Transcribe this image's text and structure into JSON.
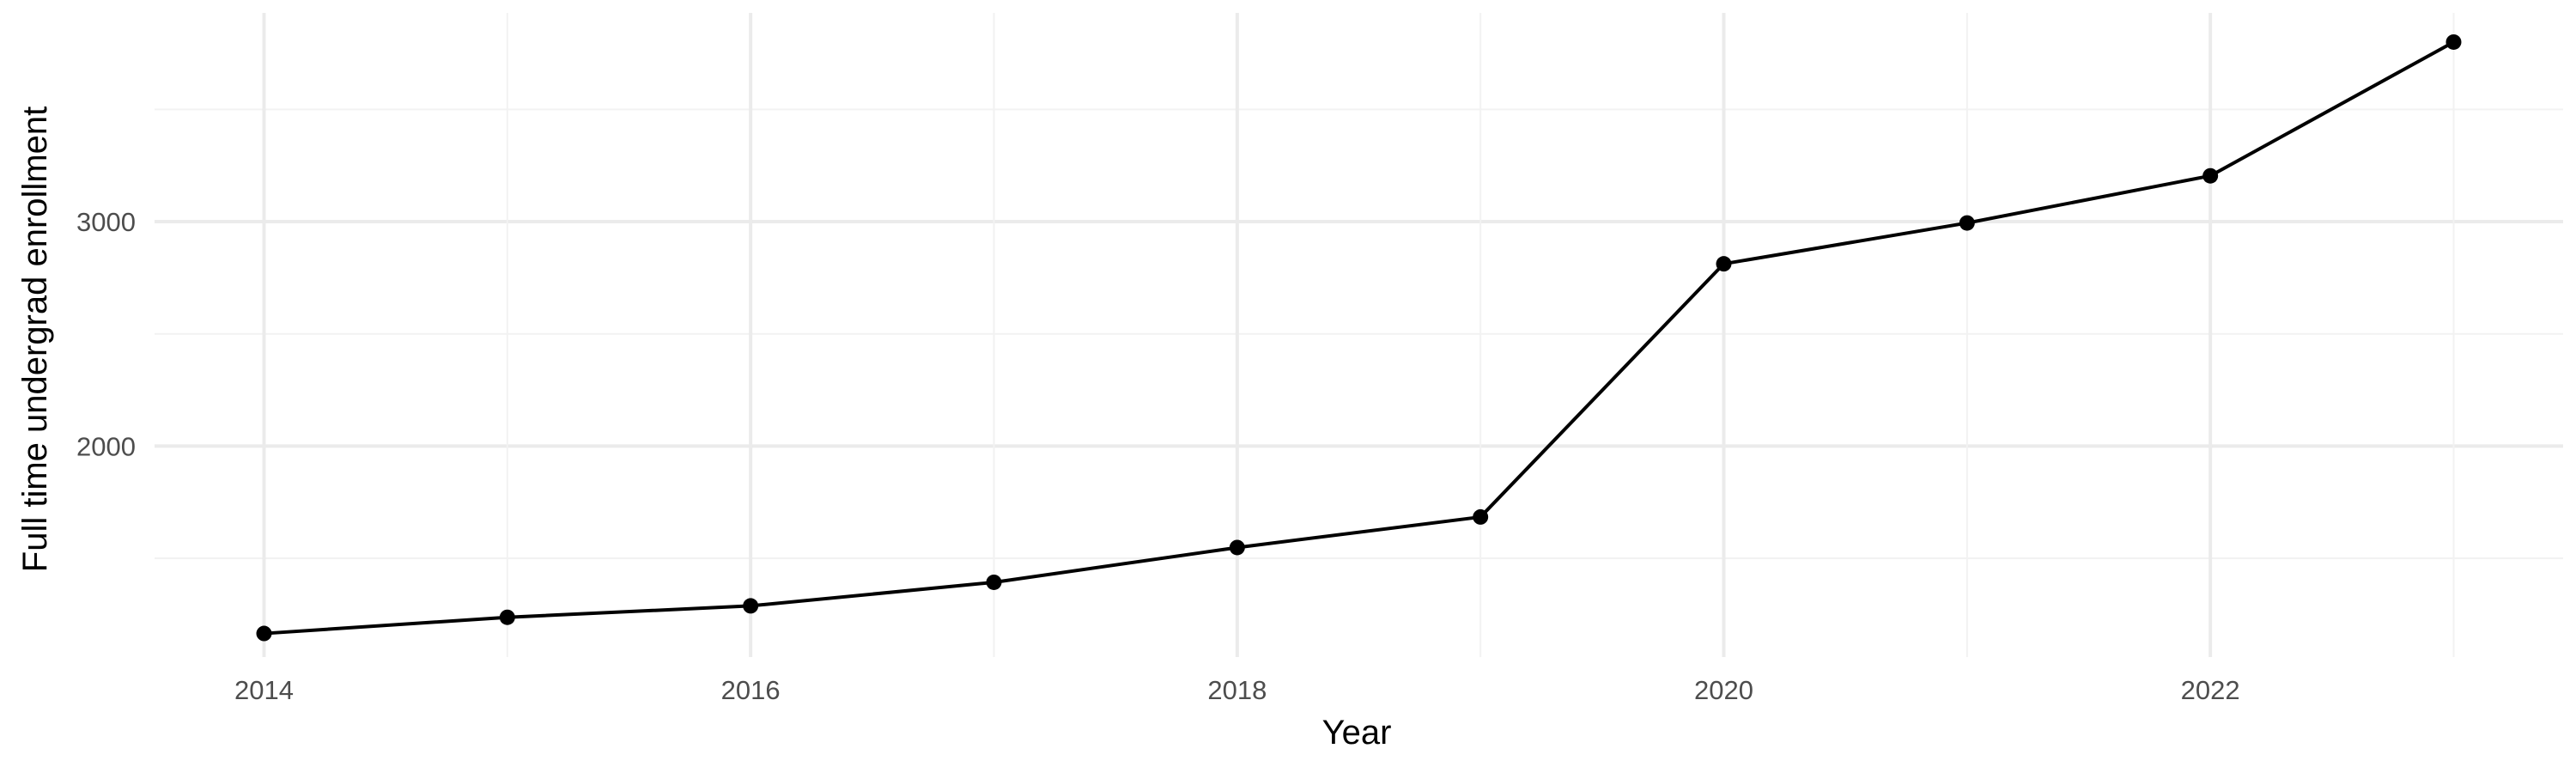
{
  "chart_data": {
    "type": "line",
    "title": "",
    "xlabel": "Year",
    "ylabel": "Full time undergrad enrollment",
    "x": [
      2014,
      2015,
      2016,
      2017,
      2018,
      2019,
      2020,
      2021,
      2022,
      2023
    ],
    "series": [
      {
        "values": [
          1165,
          1237,
          1288,
          1393,
          1548,
          1684,
          2812,
          2994,
          3204,
          3800
        ]
      }
    ],
    "xlim": [
      2013.55,
      2023.45
    ],
    "ylim": [
      1060,
      3930
    ],
    "x_ticks": [
      2014,
      2016,
      2018,
      2020,
      2022
    ],
    "x_tick_labels": [
      "2014",
      "2016",
      "2018",
      "2020",
      "2022"
    ],
    "x_minor_ticks": [
      2015,
      2017,
      2019,
      2021,
      2023
    ],
    "y_ticks": [
      2000,
      3000
    ],
    "y_tick_labels": [
      "2000",
      "3000"
    ],
    "y_minor_ticks": [
      1500,
      2500,
      3500
    ],
    "grid": true,
    "legend": "none",
    "colors": {
      "line": "#000000",
      "point": "#000000",
      "grid_major": "#ebebeb",
      "grid_minor": "#f2f2f2",
      "tick_text": "#4d4d4d",
      "title_text": "#000000"
    }
  }
}
